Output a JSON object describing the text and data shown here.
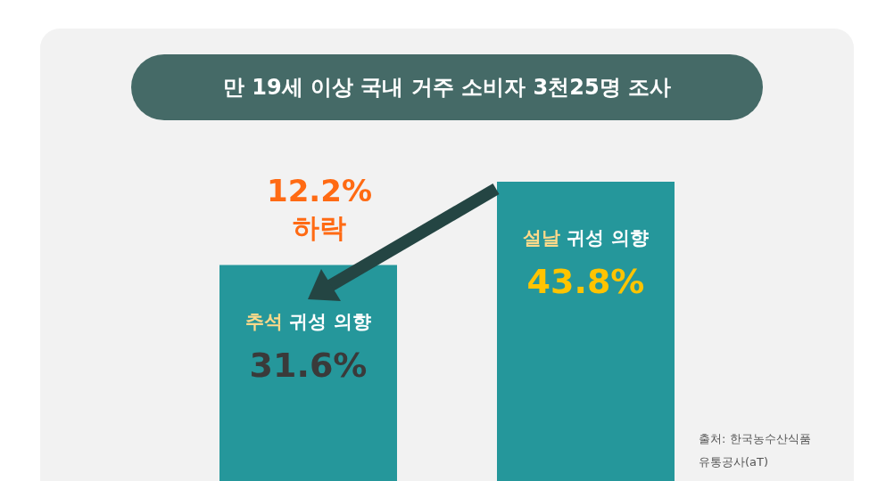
{
  "chart_data": {
    "type": "bar",
    "title": "만 19세 이상 국내 거주 소비자 3천25명 조사",
    "categories": [
      "추석 귀성 의향",
      "설날 귀성 의향"
    ],
    "values": [
      31.6,
      43.8
    ],
    "value_labels": [
      "31.6%",
      "43.8%"
    ],
    "color": "#25979b",
    "annotations": [
      "12.2% 하락",
      "출처: 한국농수산식품유통공사(aT)"
    ]
  }
}
